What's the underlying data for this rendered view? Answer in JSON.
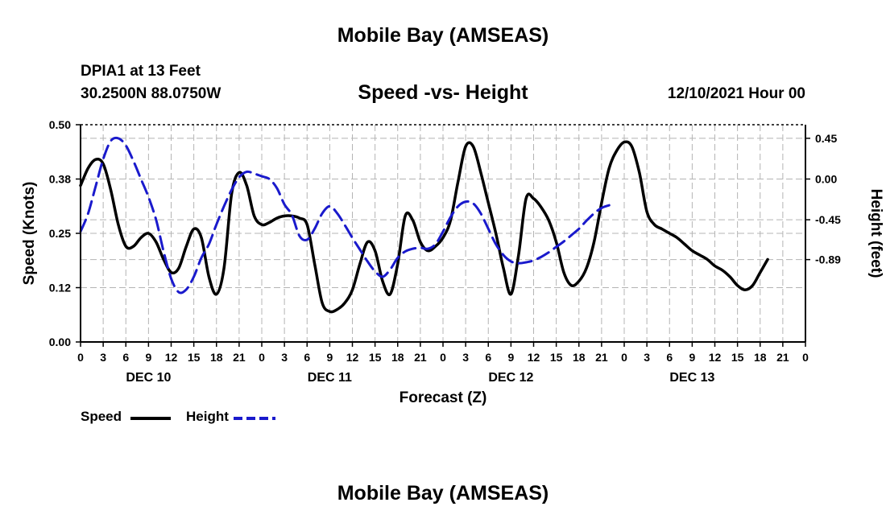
{
  "header": {
    "title": "Mobile Bay (AMSEAS)",
    "station": "DPIA1 at 13 Feet",
    "coords": "30.2500N  88.0750W",
    "subtitle": "Speed -vs- Height",
    "datetime": "12/10/2021 Hour 00"
  },
  "footer": {
    "title": "Mobile Bay (AMSEAS)"
  },
  "legend": {
    "speed_label": "Speed",
    "height_label": "Height"
  },
  "colors": {
    "speed": "#000000",
    "height": "#1a1acc",
    "grid": "#b4b4b4"
  },
  "chart_data": {
    "type": "line",
    "xlabel": "Forecast (Z)",
    "ylabel_left": "Speed (Knots)",
    "ylabel_right": "Height (feet)",
    "x_range": [
      0,
      96
    ],
    "x_tick_labels": [
      "0",
      "3",
      "6",
      "9",
      "12",
      "15",
      "18",
      "21",
      "0",
      "3",
      "6",
      "9",
      "12",
      "15",
      "18",
      "21",
      "0",
      "3",
      "6",
      "9",
      "12",
      "15",
      "18",
      "21",
      "0",
      "3",
      "6",
      "9",
      "12",
      "15",
      "18",
      "21",
      "0"
    ],
    "day_labels": [
      {
        "hour": 9,
        "label": "DEC 10"
      },
      {
        "hour": 33,
        "label": "DEC 11"
      },
      {
        "hour": 57,
        "label": "DEC 12"
      },
      {
        "hour": 81,
        "label": "DEC 13"
      }
    ],
    "y_left": {
      "range": [
        0,
        0.5
      ],
      "ticks": [
        0.0,
        0.125,
        0.25,
        0.375,
        0.5
      ],
      "tick_labels": [
        "0.00",
        "0.12",
        "0.25",
        "0.38",
        "0.50"
      ]
    },
    "y_right": {
      "range": [
        -1.8,
        0.6
      ],
      "ticks": [
        0.45,
        0.0,
        -0.45,
        -0.89
      ],
      "tick_labels": [
        "0.45",
        "0.00",
        "-0.45",
        "-0.89"
      ]
    },
    "series": [
      {
        "name": "Speed",
        "axis": "left",
        "style": "solid",
        "points": [
          [
            0,
            0.36
          ],
          [
            1,
            0.4
          ],
          [
            2,
            0.42
          ],
          [
            3,
            0.41
          ],
          [
            4,
            0.35
          ],
          [
            5,
            0.27
          ],
          [
            6,
            0.22
          ],
          [
            7,
            0.22
          ],
          [
            8,
            0.24
          ],
          [
            9,
            0.25
          ],
          [
            10,
            0.23
          ],
          [
            11,
            0.19
          ],
          [
            12,
            0.16
          ],
          [
            13,
            0.17
          ],
          [
            14,
            0.22
          ],
          [
            15,
            0.26
          ],
          [
            16,
            0.24
          ],
          [
            17,
            0.15
          ],
          [
            18,
            0.11
          ],
          [
            19,
            0.17
          ],
          [
            20,
            0.34
          ],
          [
            21,
            0.39
          ],
          [
            22,
            0.36
          ],
          [
            23,
            0.29
          ],
          [
            24,
            0.27
          ],
          [
            25,
            0.275
          ],
          [
            26,
            0.285
          ],
          [
            27,
            0.29
          ],
          [
            28,
            0.29
          ],
          [
            29,
            0.285
          ],
          [
            30,
            0.27
          ],
          [
            31,
            0.18
          ],
          [
            32,
            0.09
          ],
          [
            33,
            0.07
          ],
          [
            34,
            0.075
          ],
          [
            35,
            0.09
          ],
          [
            36,
            0.12
          ],
          [
            37,
            0.18
          ],
          [
            38,
            0.23
          ],
          [
            39,
            0.21
          ],
          [
            40,
            0.14
          ],
          [
            41,
            0.11
          ],
          [
            42,
            0.18
          ],
          [
            43,
            0.29
          ],
          [
            44,
            0.28
          ],
          [
            45,
            0.23
          ],
          [
            46,
            0.21
          ],
          [
            47,
            0.22
          ],
          [
            48,
            0.24
          ],
          [
            49,
            0.28
          ],
          [
            50,
            0.37
          ],
          [
            51,
            0.45
          ],
          [
            52,
            0.45
          ],
          [
            53,
            0.39
          ],
          [
            54,
            0.32
          ],
          [
            55,
            0.25
          ],
          [
            56,
            0.17
          ],
          [
            57,
            0.11
          ],
          [
            58,
            0.2
          ],
          [
            59,
            0.33
          ],
          [
            60,
            0.33
          ],
          [
            61,
            0.31
          ],
          [
            62,
            0.28
          ],
          [
            63,
            0.23
          ],
          [
            64,
            0.16
          ],
          [
            65,
            0.13
          ],
          [
            66,
            0.14
          ],
          [
            67,
            0.17
          ],
          [
            68,
            0.23
          ],
          [
            69,
            0.32
          ],
          [
            70,
            0.4
          ],
          [
            71,
            0.44
          ],
          [
            72,
            0.46
          ],
          [
            73,
            0.45
          ],
          [
            74,
            0.39
          ],
          [
            75,
            0.3
          ],
          [
            76,
            0.27
          ],
          [
            77,
            0.26
          ],
          [
            78,
            0.25
          ],
          [
            79,
            0.24
          ],
          [
            80,
            0.225
          ],
          [
            81,
            0.21
          ],
          [
            82,
            0.2
          ],
          [
            83,
            0.19
          ],
          [
            84,
            0.175
          ],
          [
            85,
            0.165
          ],
          [
            86,
            0.15
          ],
          [
            87,
            0.13
          ],
          [
            88,
            0.12
          ],
          [
            89,
            0.13
          ],
          [
            90,
            0.16
          ],
          [
            91,
            0.19
          ]
        ]
      },
      {
        "name": "Height",
        "axis": "right",
        "style": "dashed",
        "points": [
          [
            0,
            -0.58
          ],
          [
            1,
            -0.38
          ],
          [
            2,
            -0.08
          ],
          [
            3,
            0.22
          ],
          [
            4,
            0.42
          ],
          [
            5,
            0.45
          ],
          [
            6,
            0.37
          ],
          [
            7,
            0.2
          ],
          [
            8,
            0.0
          ],
          [
            9,
            -0.2
          ],
          [
            10,
            -0.45
          ],
          [
            11,
            -0.8
          ],
          [
            12,
            -1.1
          ],
          [
            13,
            -1.25
          ],
          [
            14,
            -1.22
          ],
          [
            15,
            -1.08
          ],
          [
            16,
            -0.87
          ],
          [
            17,
            -0.72
          ],
          [
            18,
            -0.5
          ],
          [
            19,
            -0.3
          ],
          [
            20,
            -0.12
          ],
          [
            21,
            0.02
          ],
          [
            22,
            0.08
          ],
          [
            23,
            0.06
          ],
          [
            24,
            0.03
          ],
          [
            25,
            0.0
          ],
          [
            26,
            -0.1
          ],
          [
            27,
            -0.28
          ],
          [
            28,
            -0.4
          ],
          [
            29,
            -0.63
          ],
          [
            30,
            -0.67
          ],
          [
            31,
            -0.55
          ],
          [
            32,
            -0.38
          ],
          [
            33,
            -0.3
          ],
          [
            34,
            -0.38
          ],
          [
            35,
            -0.51
          ],
          [
            36,
            -0.65
          ],
          [
            37,
            -0.78
          ],
          [
            38,
            -0.91
          ],
          [
            39,
            -1.02
          ],
          [
            40,
            -1.08
          ],
          [
            41,
            -1.0
          ],
          [
            42,
            -0.87
          ],
          [
            43,
            -0.8
          ],
          [
            44,
            -0.77
          ],
          [
            45,
            -0.76
          ],
          [
            46,
            -0.77
          ],
          [
            47,
            -0.72
          ],
          [
            48,
            -0.58
          ],
          [
            49,
            -0.42
          ],
          [
            50,
            -0.3
          ],
          [
            51,
            -0.25
          ],
          [
            52,
            -0.27
          ],
          [
            53,
            -0.38
          ],
          [
            54,
            -0.55
          ],
          [
            55,
            -0.72
          ],
          [
            56,
            -0.84
          ],
          [
            57,
            -0.91
          ],
          [
            58,
            -0.93
          ],
          [
            59,
            -0.92
          ],
          [
            60,
            -0.9
          ],
          [
            61,
            -0.86
          ],
          [
            62,
            -0.81
          ],
          [
            63,
            -0.75
          ],
          [
            64,
            -0.69
          ],
          [
            65,
            -0.62
          ],
          [
            66,
            -0.55
          ],
          [
            67,
            -0.46
          ],
          [
            68,
            -0.38
          ],
          [
            69,
            -0.32
          ],
          [
            70,
            -0.29
          ]
        ]
      }
    ]
  }
}
